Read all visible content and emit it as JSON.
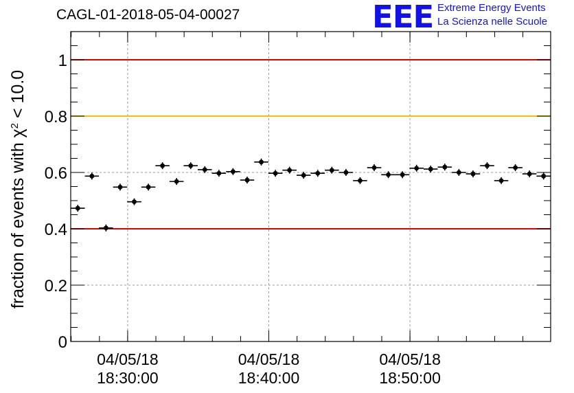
{
  "title": "CAGL-01-2018-05-04-00027",
  "logo": {
    "mark": "EEE",
    "line1": "Extreme Energy Events",
    "line2": "La Scienza nelle Scuole",
    "color": "#1212e6"
  },
  "chart_data": {
    "type": "scatter",
    "title": "CAGL-01-2018-05-04-00027",
    "ylabel_prefix": "fraction of events with ",
    "ylabel_chi": "χ",
    "ylabel_sup": "2",
    "ylabel_suffix": " < 10.0",
    "xlabel": "",
    "ylim": [
      0,
      1.1
    ],
    "yticks": [
      {
        "value": 0,
        "label": "0"
      },
      {
        "value": 0.2,
        "label": "0.2"
      },
      {
        "value": 0.4,
        "label": "0.4"
      },
      {
        "value": 0.6,
        "label": "0.6"
      },
      {
        "value": 0.8,
        "label": "0.8"
      },
      {
        "value": 1,
        "label": "1"
      }
    ],
    "xlim": [
      "2018-05-04T18:25:58",
      "2018-05-04T18:59:58"
    ],
    "xticks": [
      {
        "value": "2018-05-04T18:30:00",
        "date": "04/05/18",
        "time": "18:30:00"
      },
      {
        "value": "2018-05-04T18:40:00",
        "date": "04/05/18",
        "time": "18:40:00"
      },
      {
        "value": "2018-05-04T18:50:00",
        "date": "04/05/18",
        "time": "18:50:00"
      }
    ],
    "grid": true,
    "reference_lines": [
      {
        "y": 1.0,
        "color": "#e00000"
      },
      {
        "y": 0.8,
        "color": "#f5c000"
      },
      {
        "y": 0.4,
        "color": "#e00000"
      }
    ],
    "points": [
      {
        "x": "2018-05-04T18:26:28",
        "y": 0.473
      },
      {
        "x": "2018-05-04T18:27:28",
        "y": 0.587
      },
      {
        "x": "2018-05-04T18:28:28",
        "y": 0.403
      },
      {
        "x": "2018-05-04T18:29:28",
        "y": 0.548
      },
      {
        "x": "2018-05-04T18:30:28",
        "y": 0.496
      },
      {
        "x": "2018-05-04T18:31:28",
        "y": 0.548
      },
      {
        "x": "2018-05-04T18:32:28",
        "y": 0.624
      },
      {
        "x": "2018-05-04T18:33:28",
        "y": 0.568
      },
      {
        "x": "2018-05-04T18:34:28",
        "y": 0.624
      },
      {
        "x": "2018-05-04T18:35:28",
        "y": 0.61
      },
      {
        "x": "2018-05-04T18:36:28",
        "y": 0.597
      },
      {
        "x": "2018-05-04T18:37:28",
        "y": 0.603
      },
      {
        "x": "2018-05-04T18:38:28",
        "y": 0.573
      },
      {
        "x": "2018-05-04T18:39:28",
        "y": 0.637
      },
      {
        "x": "2018-05-04T18:40:28",
        "y": 0.597
      },
      {
        "x": "2018-05-04T18:41:28",
        "y": 0.608
      },
      {
        "x": "2018-05-04T18:42:28",
        "y": 0.59
      },
      {
        "x": "2018-05-04T18:43:28",
        "y": 0.597
      },
      {
        "x": "2018-05-04T18:44:28",
        "y": 0.608
      },
      {
        "x": "2018-05-04T18:45:28",
        "y": 0.6
      },
      {
        "x": "2018-05-04T18:46:28",
        "y": 0.571
      },
      {
        "x": "2018-05-04T18:47:28",
        "y": 0.617
      },
      {
        "x": "2018-05-04T18:48:28",
        "y": 0.592
      },
      {
        "x": "2018-05-04T18:49:28",
        "y": 0.592
      },
      {
        "x": "2018-05-04T18:50:28",
        "y": 0.615
      },
      {
        "x": "2018-05-04T18:51:28",
        "y": 0.612
      },
      {
        "x": "2018-05-04T18:52:28",
        "y": 0.619
      },
      {
        "x": "2018-05-04T18:53:28",
        "y": 0.6
      },
      {
        "x": "2018-05-04T18:54:28",
        "y": 0.595
      },
      {
        "x": "2018-05-04T18:55:28",
        "y": 0.624
      },
      {
        "x": "2018-05-04T18:56:28",
        "y": 0.571
      },
      {
        "x": "2018-05-04T18:57:28",
        "y": 0.617
      },
      {
        "x": "2018-05-04T18:58:28",
        "y": 0.595
      },
      {
        "x": "2018-05-04T18:59:28",
        "y": 0.587
      }
    ],
    "bin_width_seconds": 60
  }
}
